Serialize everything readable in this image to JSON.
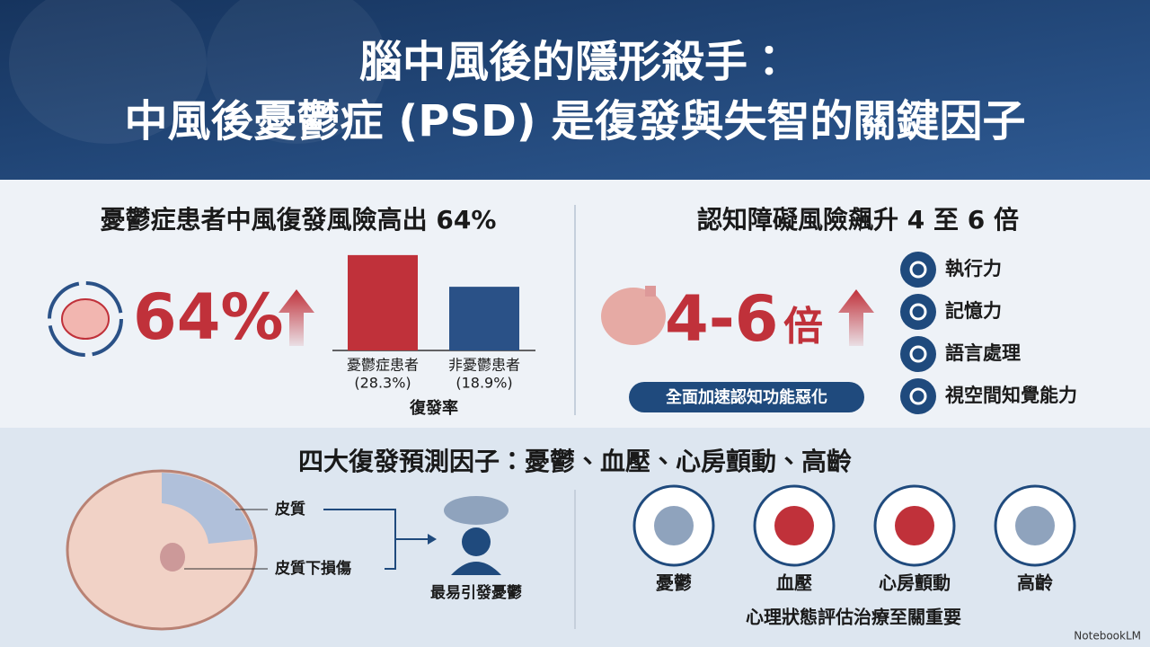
{
  "header": {
    "title_line1": "腦中風後的隱形殺手：",
    "title_line2": "中風後憂鬱症 (PSD) 是復發與失智的關鍵因子"
  },
  "recurrence": {
    "heading": "憂鬱症患者中風復發風險高出 64%",
    "stat": "64%",
    "bars": {
      "categories": [
        "憂鬱症患者",
        "非憂鬱患者"
      ],
      "values": [
        28.3,
        18.9
      ],
      "value_labels": [
        "(28.3%)",
        "(18.9%)"
      ],
      "colors": [
        "#c0313a",
        "#2a5187"
      ],
      "xlabel": "復發率"
    }
  },
  "cognition": {
    "heading": "認知障礙風險飆升 4 至 6 倍",
    "stat_number": "4-6",
    "stat_unit": "倍",
    "badge": "全面加速認知功能惡化",
    "domains": [
      "執行力",
      "記憶力",
      "語言處理",
      "視空間知覺能力"
    ]
  },
  "predictors": {
    "heading": "四大復發預測因子：憂鬱、血壓、心房顫動、高齡",
    "lesions": [
      "皮質",
      "皮質下損傷"
    ],
    "outcome": "最易引發憂鬱",
    "factors": [
      "憂鬱",
      "血壓",
      "心房顫動",
      "高齡"
    ],
    "note": "心理狀態評估治療至關重要"
  },
  "watermark": "NotebookLM"
}
